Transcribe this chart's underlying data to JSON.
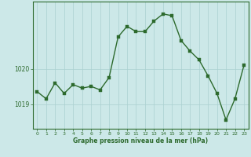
{
  "x": [
    0,
    1,
    2,
    3,
    4,
    5,
    6,
    7,
    8,
    9,
    10,
    11,
    12,
    13,
    14,
    15,
    16,
    17,
    18,
    19,
    20,
    21,
    22,
    23
  ],
  "y": [
    1019.35,
    1019.15,
    1019.6,
    1019.3,
    1019.55,
    1019.45,
    1019.5,
    1019.4,
    1019.75,
    1020.9,
    1021.2,
    1021.05,
    1021.05,
    1021.35,
    1021.55,
    1021.5,
    1020.8,
    1020.5,
    1020.25,
    1019.8,
    1019.3,
    1018.55,
    1019.15,
    1020.1
  ],
  "line_color": "#2d6a2d",
  "marker_color": "#2d6a2d",
  "bg_color": "#cce8e8",
  "grid_color": "#aad0d0",
  "xlabel": "Graphe pression niveau de la mer (hPa)",
  "xlabel_color": "#2d6a2d",
  "tick_color": "#2d6a2d",
  "axis_color": "#2d6a2d",
  "ytick_labels": [
    1019,
    1020
  ],
  "ylim": [
    1018.3,
    1021.9
  ],
  "xlim": [
    -0.5,
    23.5
  ],
  "marker_size": 2.5,
  "line_width": 1.0
}
